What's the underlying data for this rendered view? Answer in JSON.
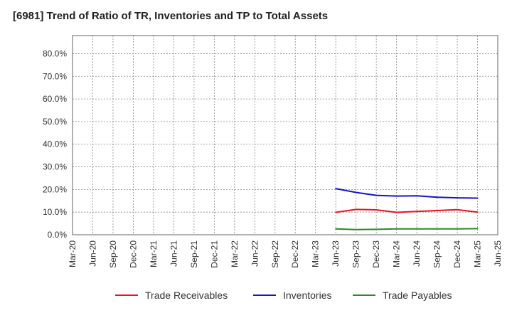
{
  "title": "[6981]  Trend of Ratio of TR, Inventories and TP to Total Assets",
  "chart_data": {
    "type": "line",
    "title": "[6981]  Trend of Ratio of TR, Inventories and TP to Total Assets",
    "xlabel": "",
    "ylabel": "",
    "ylim": [
      0,
      80
    ],
    "y_ticks": [
      "0.0%",
      "10.0%",
      "20.0%",
      "30.0%",
      "40.0%",
      "50.0%",
      "60.0%",
      "70.0%",
      "80.0%"
    ],
    "x_ticks": [
      "Mar-20",
      "Jun-20",
      "Sep-20",
      "Dec-20",
      "Mar-21",
      "Jun-21",
      "Sep-21",
      "Dec-21",
      "Mar-22",
      "Jun-22",
      "Sep-22",
      "Dec-22",
      "Mar-23",
      "Jun-23",
      "Sep-23",
      "Dec-23",
      "Mar-24",
      "Jun-24",
      "Sep-24",
      "Dec-24",
      "Mar-25",
      "Jun-25"
    ],
    "x": [
      "Jun-23",
      "Sep-23",
      "Dec-23",
      "Mar-24",
      "Jun-24",
      "Sep-24",
      "Dec-24",
      "Mar-25"
    ],
    "grid": true,
    "legend_position": "bottom",
    "series": [
      {
        "name": "Trade Receivables",
        "color": "#e8141b",
        "values": [
          9.9,
          11.2,
          11.0,
          9.9,
          10.3,
          10.7,
          11.1,
          10.0
        ]
      },
      {
        "name": "Inventories",
        "color": "#1515c8",
        "values": [
          20.4,
          18.7,
          17.4,
          17.1,
          17.2,
          16.6,
          16.3,
          16.2
        ]
      },
      {
        "name": "Trade Payables",
        "color": "#2a8a2a",
        "values": [
          2.6,
          2.3,
          2.4,
          2.6,
          2.6,
          2.6,
          2.6,
          2.7
        ]
      }
    ]
  }
}
